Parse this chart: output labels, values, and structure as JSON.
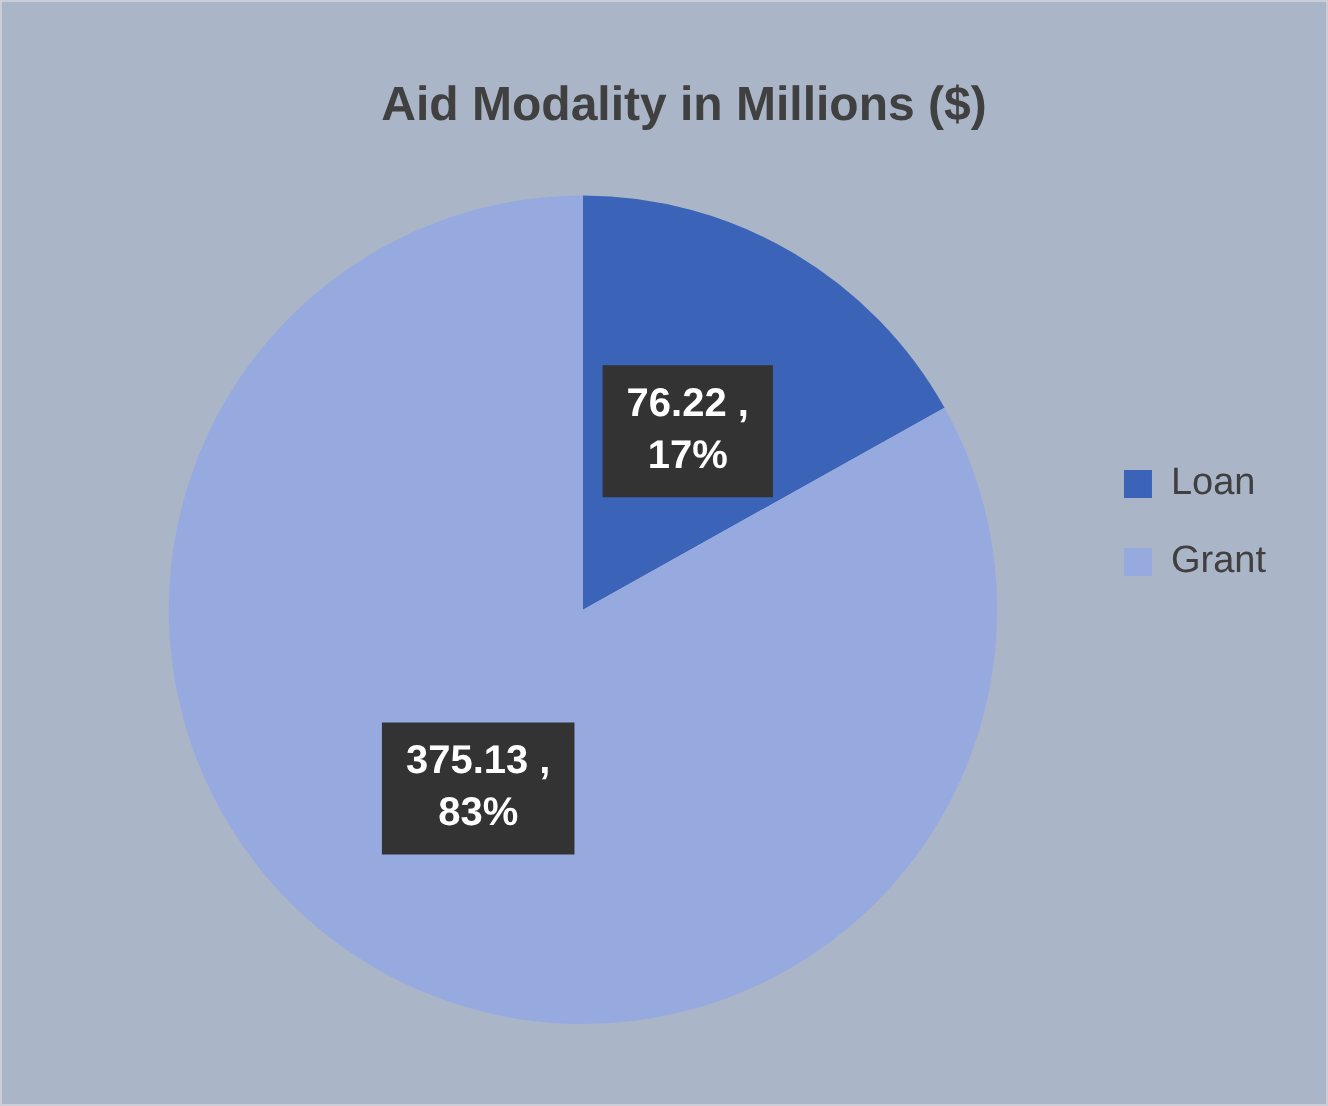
{
  "chart_data": {
    "type": "pie",
    "title": "Aid Modality in Millions ($)",
    "categories": [
      "Loan",
      "Grant"
    ],
    "values": [
      76.22,
      375.13
    ],
    "colors": [
      "#3b64b9",
      "#97aadf"
    ],
    "value_labels": [
      "76.22 , 17%",
      "375.13 , 83%"
    ],
    "legend": "right"
  }
}
